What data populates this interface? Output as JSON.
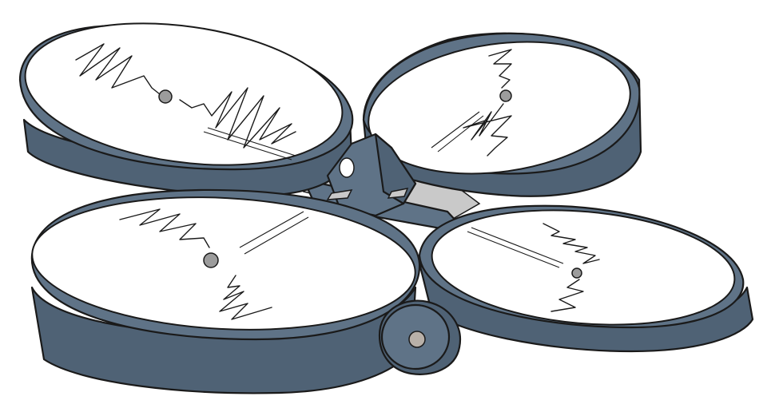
{
  "image": {
    "subject": "quadcopter-drone-sketch",
    "style": "hand-drawn-illustration",
    "colors": {
      "frame": "#5f7387",
      "frame_dark": "#4f6275",
      "frame_light": "#71869a",
      "outline": "#1a1a1a",
      "rotor_disc": "#ffffff",
      "hub_gray": "#9c9c9c",
      "arm_gray": "#c9c9c9"
    },
    "parts": [
      "propeller-guard-top-left",
      "propeller-guard-top-right",
      "propeller-guard-bottom-left",
      "propeller-guard-bottom-right",
      "center-body",
      "camera-pod"
    ]
  }
}
